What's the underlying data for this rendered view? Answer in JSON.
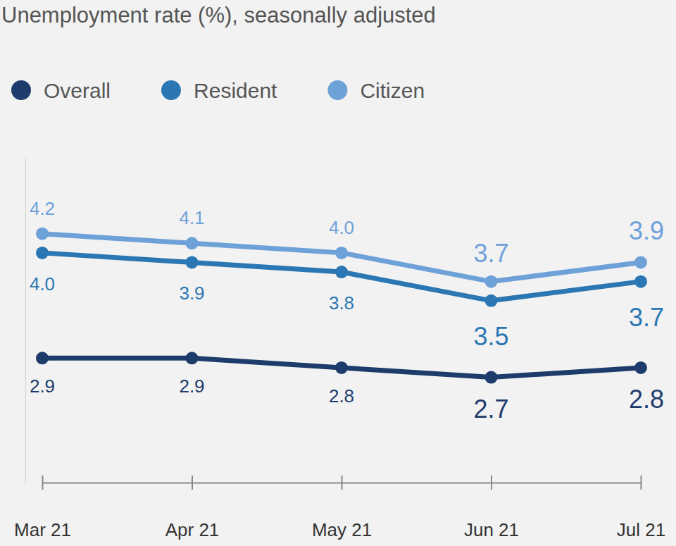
{
  "chart_data": {
    "type": "line",
    "title": "Unemployment rate (%), seasonally adjusted",
    "categories": [
      "Mar 21",
      "Apr 21",
      "May 21",
      "Jun 21",
      "Jul 21"
    ],
    "series": [
      {
        "name": "Overall",
        "color": "#1d3c6b",
        "values": [
          2.9,
          2.9,
          2.8,
          2.7,
          2.8
        ],
        "value_labels": [
          "2.9",
          "2.9",
          "2.8",
          "2.7",
          "2.8"
        ]
      },
      {
        "name": "Resident",
        "color": "#2b77b3",
        "values": [
          4.0,
          3.9,
          3.8,
          3.5,
          3.7
        ],
        "value_labels": [
          "4.0",
          "3.9",
          "3.8",
          "3.5",
          "3.7"
        ]
      },
      {
        "name": "Citizen",
        "color": "#6fa1d9",
        "values": [
          4.2,
          4.1,
          4.0,
          3.7,
          3.9
        ],
        "value_labels": [
          "4.2",
          "4.1",
          "4.0",
          "3.7",
          "3.9"
        ]
      }
    ],
    "ylim": [
      1.6,
      5.0
    ],
    "legend": "top-left",
    "data_labels": true,
    "tick_labels": "x",
    "marker": "circle",
    "grid": false
  }
}
